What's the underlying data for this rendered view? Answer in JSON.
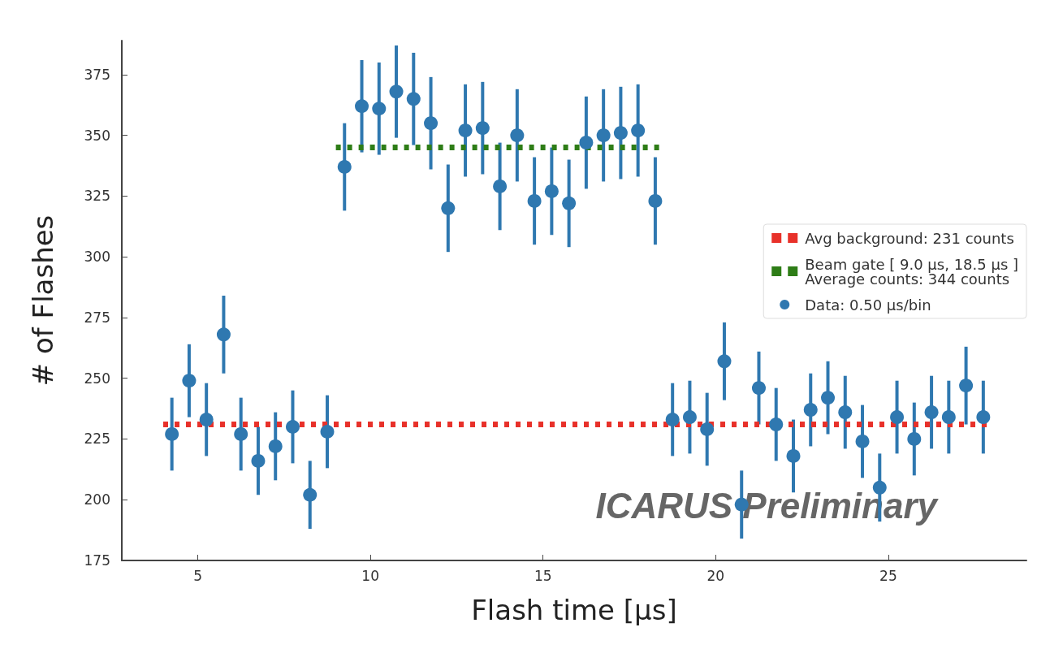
{
  "chart_data": {
    "type": "scatter",
    "xlabel": "Flash time [μs]",
    "ylabel": "# of Flashes",
    "xlim": [
      2.8,
      29
    ],
    "xticks": [
      5,
      10,
      15,
      20,
      25
    ],
    "ylim": [
      175,
      389
    ],
    "yticks": [
      175,
      200,
      225,
      250,
      275,
      300,
      325,
      350,
      375
    ],
    "grid": false,
    "legend": "right",
    "annotations": [
      "ICARUS Preliminary"
    ],
    "series": [
      {
        "name": "Avg background: 231 counts",
        "type": "line",
        "marker": "none",
        "line_style": "dotted",
        "color": "#e8312a",
        "x": [
          4.0,
          27.9
        ],
        "values": [
          231,
          231
        ]
      },
      {
        "name": "Beam gate [ 9.0 μs, 18.5 μs ]\nAverage counts: 344 counts",
        "type": "line",
        "marker": "none",
        "line_style": "dotted",
        "color": "#2e7d17",
        "x": [
          9.0,
          18.5
        ],
        "values": [
          345,
          345
        ]
      },
      {
        "name": "Data: 0.50 μs/bin",
        "marker": "circle",
        "color": "#2f78b0",
        "x": [
          4.25,
          4.75,
          5.25,
          5.75,
          6.25,
          6.75,
          7.25,
          7.75,
          8.25,
          8.75,
          9.25,
          9.75,
          10.25,
          10.75,
          11.25,
          11.75,
          12.25,
          12.75,
          13.25,
          13.75,
          14.25,
          14.75,
          15.25,
          15.75,
          16.25,
          16.75,
          17.25,
          17.75,
          18.25,
          18.75,
          19.25,
          19.75,
          20.25,
          20.75,
          21.25,
          21.75,
          22.25,
          22.75,
          23.25,
          23.75,
          24.25,
          24.75,
          25.25,
          25.75,
          26.25,
          26.75,
          27.25,
          27.75
        ],
        "values": [
          227,
          249,
          233,
          268,
          227,
          216,
          222,
          230,
          202,
          228,
          337,
          362,
          361,
          368,
          365,
          355,
          320,
          352,
          353,
          329,
          350,
          323,
          327,
          322,
          347,
          350,
          351,
          352,
          323,
          233,
          234,
          229,
          257,
          198,
          246,
          231,
          218,
          237,
          242,
          236,
          224,
          205,
          234,
          225,
          236,
          234,
          247,
          234
        ],
        "errors": [
          15,
          15,
          15,
          16,
          15,
          14,
          14,
          15,
          14,
          15,
          18,
          19,
          19,
          19,
          19,
          19,
          18,
          19,
          19,
          18,
          19,
          18,
          18,
          18,
          19,
          19,
          19,
          19,
          18,
          15,
          15,
          15,
          16,
          14,
          15,
          15,
          15,
          15,
          15,
          15,
          15,
          14,
          15,
          15,
          15,
          15,
          16,
          15
        ]
      }
    ]
  }
}
